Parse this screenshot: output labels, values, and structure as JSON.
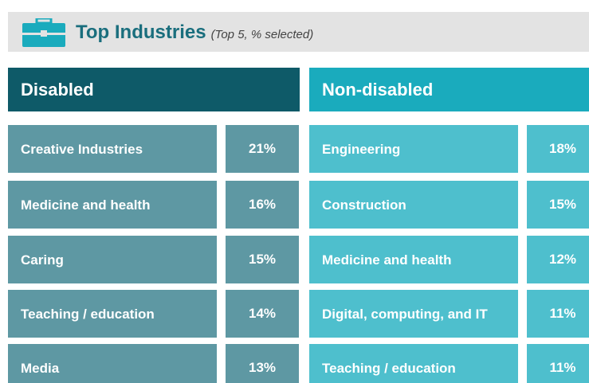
{
  "header": {
    "title": "Top Industries",
    "subtitle": "(Top 5, % selected)"
  },
  "columns": [
    {
      "title": "Disabled",
      "rows": [
        {
          "label": "Creative Industries",
          "value": "21%"
        },
        {
          "label": "Medicine and health",
          "value": "16%"
        },
        {
          "label": "Caring",
          "value": "15%"
        },
        {
          "label": "Teaching / education",
          "value": "14%"
        },
        {
          "label": "Media",
          "value": "13%"
        }
      ]
    },
    {
      "title": "Non-disabled",
      "rows": [
        {
          "label": "Engineering",
          "value": "18%"
        },
        {
          "label": "Construction",
          "value": "15%"
        },
        {
          "label": "Medicine and health",
          "value": "12%"
        },
        {
          "label": "Digital, computing, and IT",
          "value": "11%"
        },
        {
          "label": "Teaching / education",
          "value": "11%"
        }
      ]
    }
  ]
}
